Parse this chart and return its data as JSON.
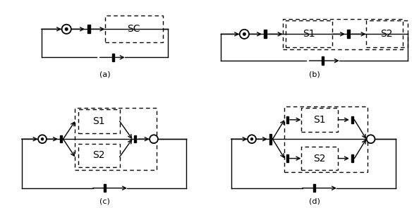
{
  "fig_width": 5.94,
  "fig_height": 2.95,
  "bg_color": "#ffffff",
  "panel_labels": [
    "(a)",
    "(b)",
    "(c)",
    "(d)"
  ]
}
